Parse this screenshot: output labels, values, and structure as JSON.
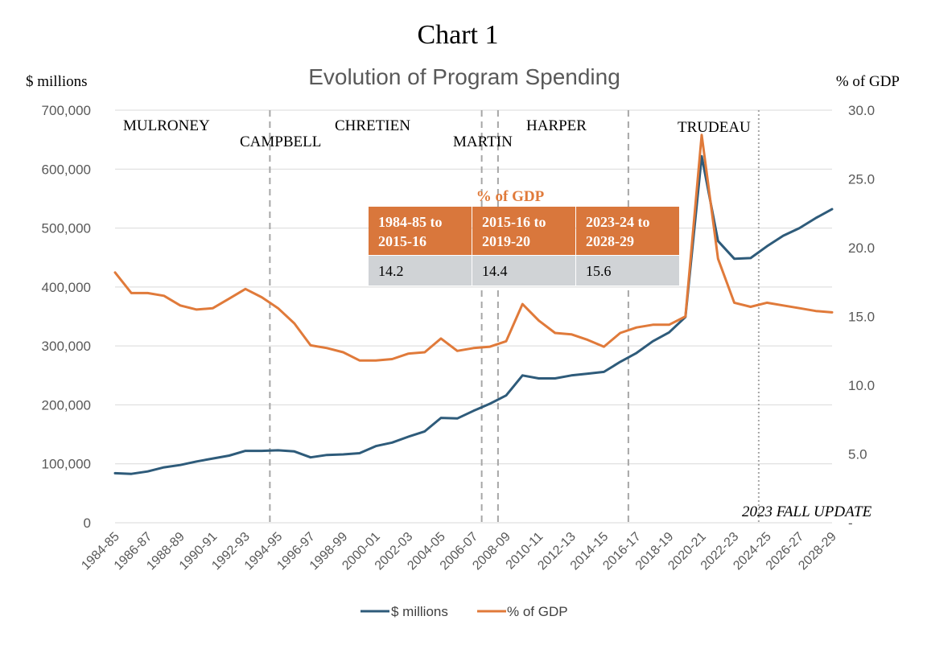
{
  "header": {
    "title": "Chart 1"
  },
  "colors": {
    "millions": "#2E5B7A",
    "pct_gdp": "#E07A3A",
    "grid": "#D9D9D9",
    "divider": "#A6A6A6",
    "table_header": "#D9773C",
    "table_body": "#D0D3D6"
  },
  "chart_data": {
    "type": "line",
    "title": "Evolution of Program Spending",
    "ylabel_left": "$ millions",
    "ylabel_right": "% of GDP",
    "ylim_left": [
      0,
      700000
    ],
    "ylim_right": [
      0,
      30
    ],
    "yticks_left": [
      "0",
      "100,000",
      "200,000",
      "300,000",
      "400,000",
      "500,000",
      "600,000",
      "700,000"
    ],
    "yticks_right": [
      "-",
      "5.0",
      "10.0",
      "15.0",
      "20.0",
      "25.0",
      "30.0"
    ],
    "x": [
      "1984-85",
      "1985-86",
      "1986-87",
      "1987-88",
      "1988-89",
      "1989-90",
      "1990-91",
      "1991-92",
      "1992-93",
      "1993-94",
      "1994-95",
      "1995-96",
      "1996-97",
      "1997-98",
      "1998-99",
      "1999-00",
      "2000-01",
      "2001-02",
      "2002-03",
      "2003-04",
      "2004-05",
      "2005-06",
      "2006-07",
      "2007-08",
      "2008-09",
      "2009-10",
      "2010-11",
      "2011-12",
      "2012-13",
      "2013-14",
      "2014-15",
      "2015-16",
      "2016-17",
      "2017-18",
      "2018-19",
      "2019-20",
      "2020-21",
      "2021-22",
      "2022-23",
      "2023-24",
      "2024-25",
      "2025-26",
      "2026-27",
      "2027-28",
      "2028-29"
    ],
    "x_tick_labels": [
      "1984-85",
      "1986-87",
      "1988-89",
      "1990-91",
      "1992-93",
      "1994-95",
      "1996-97",
      "1998-99",
      "2000-01",
      "2002-03",
      "2004-05",
      "2006-07",
      "2008-09",
      "2010-11",
      "2012-13",
      "2014-15",
      "2016-17",
      "2018-19",
      "2020-21",
      "2022-23",
      "2024-25",
      "2026-27",
      "2028-29"
    ],
    "series": [
      {
        "name": "$ millions",
        "axis": "left",
        "values": [
          84000,
          83000,
          87000,
          94000,
          98000,
          104000,
          109000,
          114000,
          122000,
          122000,
          123000,
          121000,
          111000,
          115000,
          116000,
          118000,
          130000,
          136000,
          146000,
          155000,
          178000,
          177000,
          190000,
          202000,
          216000,
          250000,
          245000,
          245000,
          250000,
          253000,
          256000,
          273000,
          288000,
          308000,
          323000,
          349000,
          622000,
          478000,
          448000,
          449000,
          469000,
          487000,
          500000,
          517000,
          532000
        ]
      },
      {
        "name": "% of GDP",
        "axis": "right",
        "values": [
          18.2,
          16.7,
          16.7,
          16.5,
          15.8,
          15.5,
          15.6,
          16.3,
          17.0,
          16.4,
          15.6,
          14.5,
          12.9,
          12.7,
          12.4,
          11.8,
          11.8,
          11.9,
          12.3,
          12.4,
          13.4,
          12.5,
          12.7,
          12.8,
          13.2,
          15.9,
          14.7,
          13.8,
          13.7,
          13.3,
          12.8,
          13.8,
          14.2,
          14.4,
          14.4,
          15.0,
          28.2,
          19.2,
          16.0,
          15.7,
          16.0,
          15.8,
          15.6,
          15.4,
          15.3
        ]
      }
    ],
    "dividers": [
      {
        "after": "1993-94",
        "style": "dashed"
      },
      {
        "after": "2006-07",
        "style": "dashed"
      },
      {
        "after": "2007-08",
        "style": "dashed"
      },
      {
        "after": "2015-16",
        "style": "dashed"
      },
      {
        "after": "2023-24",
        "style": "dotted"
      }
    ],
    "eras": [
      "MULRONEY",
      "CAMPBELL",
      "CHRETIEN",
      "MARTIN",
      "HARPER",
      "TRUDEAU"
    ],
    "note": "2023 FALL UPDATE",
    "inset_table": {
      "title": "% of GDP",
      "headers": [
        [
          "1984-85 to",
          "2015-16"
        ],
        [
          "2015-16 to",
          "2019-20"
        ],
        [
          "2023-24 to",
          "2028-29"
        ]
      ],
      "values": [
        "14.2",
        "14.4",
        "15.6"
      ]
    },
    "grid": true,
    "legend": "bottom"
  }
}
